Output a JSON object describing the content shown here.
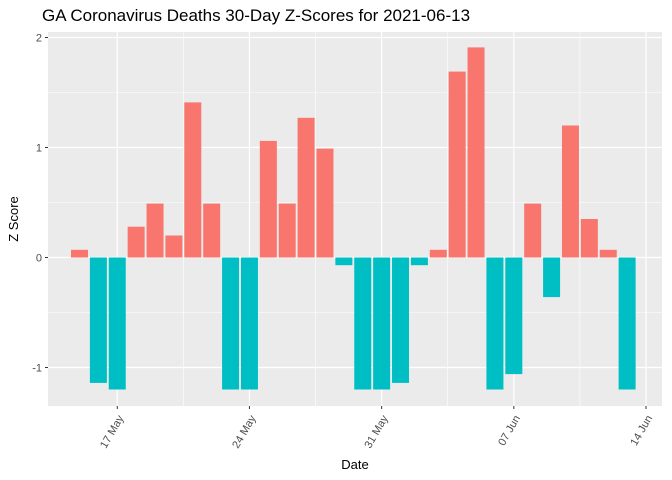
{
  "chart_data": {
    "type": "bar",
    "title": "GA Coronavirus Deaths 30-Day Z-Scores for 2021-06-13",
    "xlabel": "Date",
    "ylabel": "Z Score",
    "ylim": [
      -1.35,
      2.05
    ],
    "y_ticks": [
      -1,
      0,
      1,
      2
    ],
    "y_tick_labels": [
      "-1",
      "0",
      "1",
      "2"
    ],
    "x_ticks": [
      "2021-05-17",
      "2021-05-24",
      "2021-05-31",
      "2021-06-07",
      "2021-06-14"
    ],
    "x_tick_labels": [
      "17 May",
      "24 May",
      "31 May",
      "07 Jun",
      "14 Jun"
    ],
    "x_range": [
      "2021-05-12",
      "2021-06-14"
    ],
    "grid": true,
    "colors": {
      "positive": "#f8766d",
      "negative": "#00bfc4",
      "panel": "#ebebeb",
      "grid": "#ffffff"
    },
    "x": [
      "2021-05-15",
      "2021-05-16",
      "2021-05-17",
      "2021-05-18",
      "2021-05-19",
      "2021-05-20",
      "2021-05-21",
      "2021-05-22",
      "2021-05-23",
      "2021-05-24",
      "2021-05-25",
      "2021-05-26",
      "2021-05-27",
      "2021-05-28",
      "2021-05-29",
      "2021-05-30",
      "2021-05-31",
      "2021-06-01",
      "2021-06-02",
      "2021-06-03",
      "2021-06-04",
      "2021-06-05",
      "2021-06-06",
      "2021-06-07",
      "2021-06-08",
      "2021-06-09",
      "2021-06-10",
      "2021-06-11",
      "2021-06-12",
      "2021-06-13"
    ],
    "values": [
      0.07,
      -1.14,
      -1.2,
      0.28,
      0.49,
      0.2,
      1.41,
      0.49,
      -1.2,
      -1.2,
      1.06,
      0.49,
      1.27,
      0.99,
      -0.07,
      -1.2,
      -1.2,
      -1.14,
      -0.07,
      0.07,
      1.69,
      1.91,
      -1.2,
      -1.06,
      0.49,
      -0.36,
      1.2,
      0.35,
      0.07,
      -1.2
    ]
  }
}
